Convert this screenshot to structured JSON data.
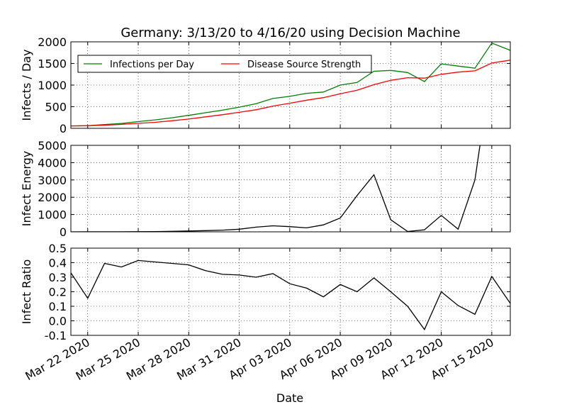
{
  "title": "Germany: 3/13/20 to 4/16/20 using Decision Machine",
  "xlabel": "Date",
  "x_tick_labels": [
    "Mar 22 2020",
    "Mar 25 2020",
    "Mar 28 2020",
    "Mar 31 2020",
    "Apr 03 2020",
    "Apr 06 2020",
    "Apr 09 2020",
    "Apr 12 2020",
    "Apr 15 2020"
  ],
  "x_tick_days": [
    0,
    3,
    6,
    9,
    12,
    15,
    18,
    21,
    24
  ],
  "x_range_days": [
    -1,
    25.1
  ],
  "chart_data": [
    {
      "type": "line",
      "panel": "top",
      "ylabel": "Infects / Day",
      "ylim": [
        0,
        2000
      ],
      "yticks": [
        0,
        500,
        1000,
        1500,
        2000
      ],
      "legend": "upper-left",
      "x_days": [
        -1,
        0,
        1,
        2,
        3,
        4,
        5,
        6,
        7,
        8,
        9,
        10,
        11,
        12,
        13,
        14,
        15,
        16,
        17,
        18,
        19,
        20,
        21,
        22,
        23,
        24,
        25,
        25.1
      ],
      "series": [
        {
          "name": "Infections per Day",
          "color": "#008000",
          "values": [
            55,
            60,
            88,
            112,
            155,
            195,
            245,
            300,
            360,
            420,
            490,
            570,
            690,
            740,
            810,
            840,
            1000,
            1060,
            1320,
            1340,
            1290,
            1080,
            1490,
            1440,
            1390,
            1970,
            1820,
            1800
          ]
        },
        {
          "name": "Disease Source Strength",
          "color": "#ff0000",
          "values": [
            55,
            60,
            72,
            92,
            115,
            140,
            175,
            215,
            265,
            315,
            370,
            430,
            515,
            580,
            650,
            710,
            800,
            880,
            1010,
            1110,
            1170,
            1160,
            1250,
            1300,
            1330,
            1510,
            1570,
            1580
          ]
        }
      ]
    },
    {
      "type": "line",
      "panel": "middle",
      "ylabel": "Infect Energy",
      "ylim": [
        0,
        5000
      ],
      "yticks": [
        0,
        1000,
        2000,
        3000,
        4000,
        5000
      ],
      "x_days": [
        -1,
        0,
        1,
        2,
        3,
        4,
        5,
        6,
        7,
        8,
        9,
        10,
        11,
        12,
        13,
        14,
        15,
        16,
        17,
        18,
        19,
        20,
        21,
        22,
        23,
        23.3
      ],
      "series": [
        {
          "name": "Infect Energy",
          "color": "#000000",
          "values": [
            0,
            5,
            5,
            5,
            10,
            15,
            30,
            50,
            70,
            100,
            150,
            270,
            350,
            300,
            230,
            400,
            800,
            2100,
            3300,
            700,
            20,
            120,
            950,
            150,
            3000,
            5000
          ]
        }
      ]
    },
    {
      "type": "line",
      "panel": "bottom",
      "ylabel": "Infect Ratio",
      "ylim": [
        -0.1,
        0.5
      ],
      "yticks": [
        -0.1,
        0.0,
        0.1,
        0.2,
        0.3,
        0.4,
        0.5
      ],
      "x_days": [
        -1,
        0,
        1,
        2,
        3,
        4,
        5,
        6,
        7,
        8,
        9,
        10,
        11,
        12,
        13,
        14,
        15,
        16,
        17,
        18,
        19,
        20,
        21,
        22,
        23,
        24,
        25.1
      ],
      "series": [
        {
          "name": "Infect Ratio",
          "color": "#000000",
          "values": [
            0.33,
            0.155,
            0.395,
            0.37,
            0.415,
            0.405,
            0.395,
            0.385,
            0.345,
            0.32,
            0.315,
            0.3,
            0.325,
            0.255,
            0.225,
            0.165,
            0.25,
            0.2,
            0.295,
            0.2,
            0.1,
            -0.06,
            0.2,
            0.105,
            0.045,
            0.305,
            0.12
          ]
        }
      ]
    }
  ]
}
